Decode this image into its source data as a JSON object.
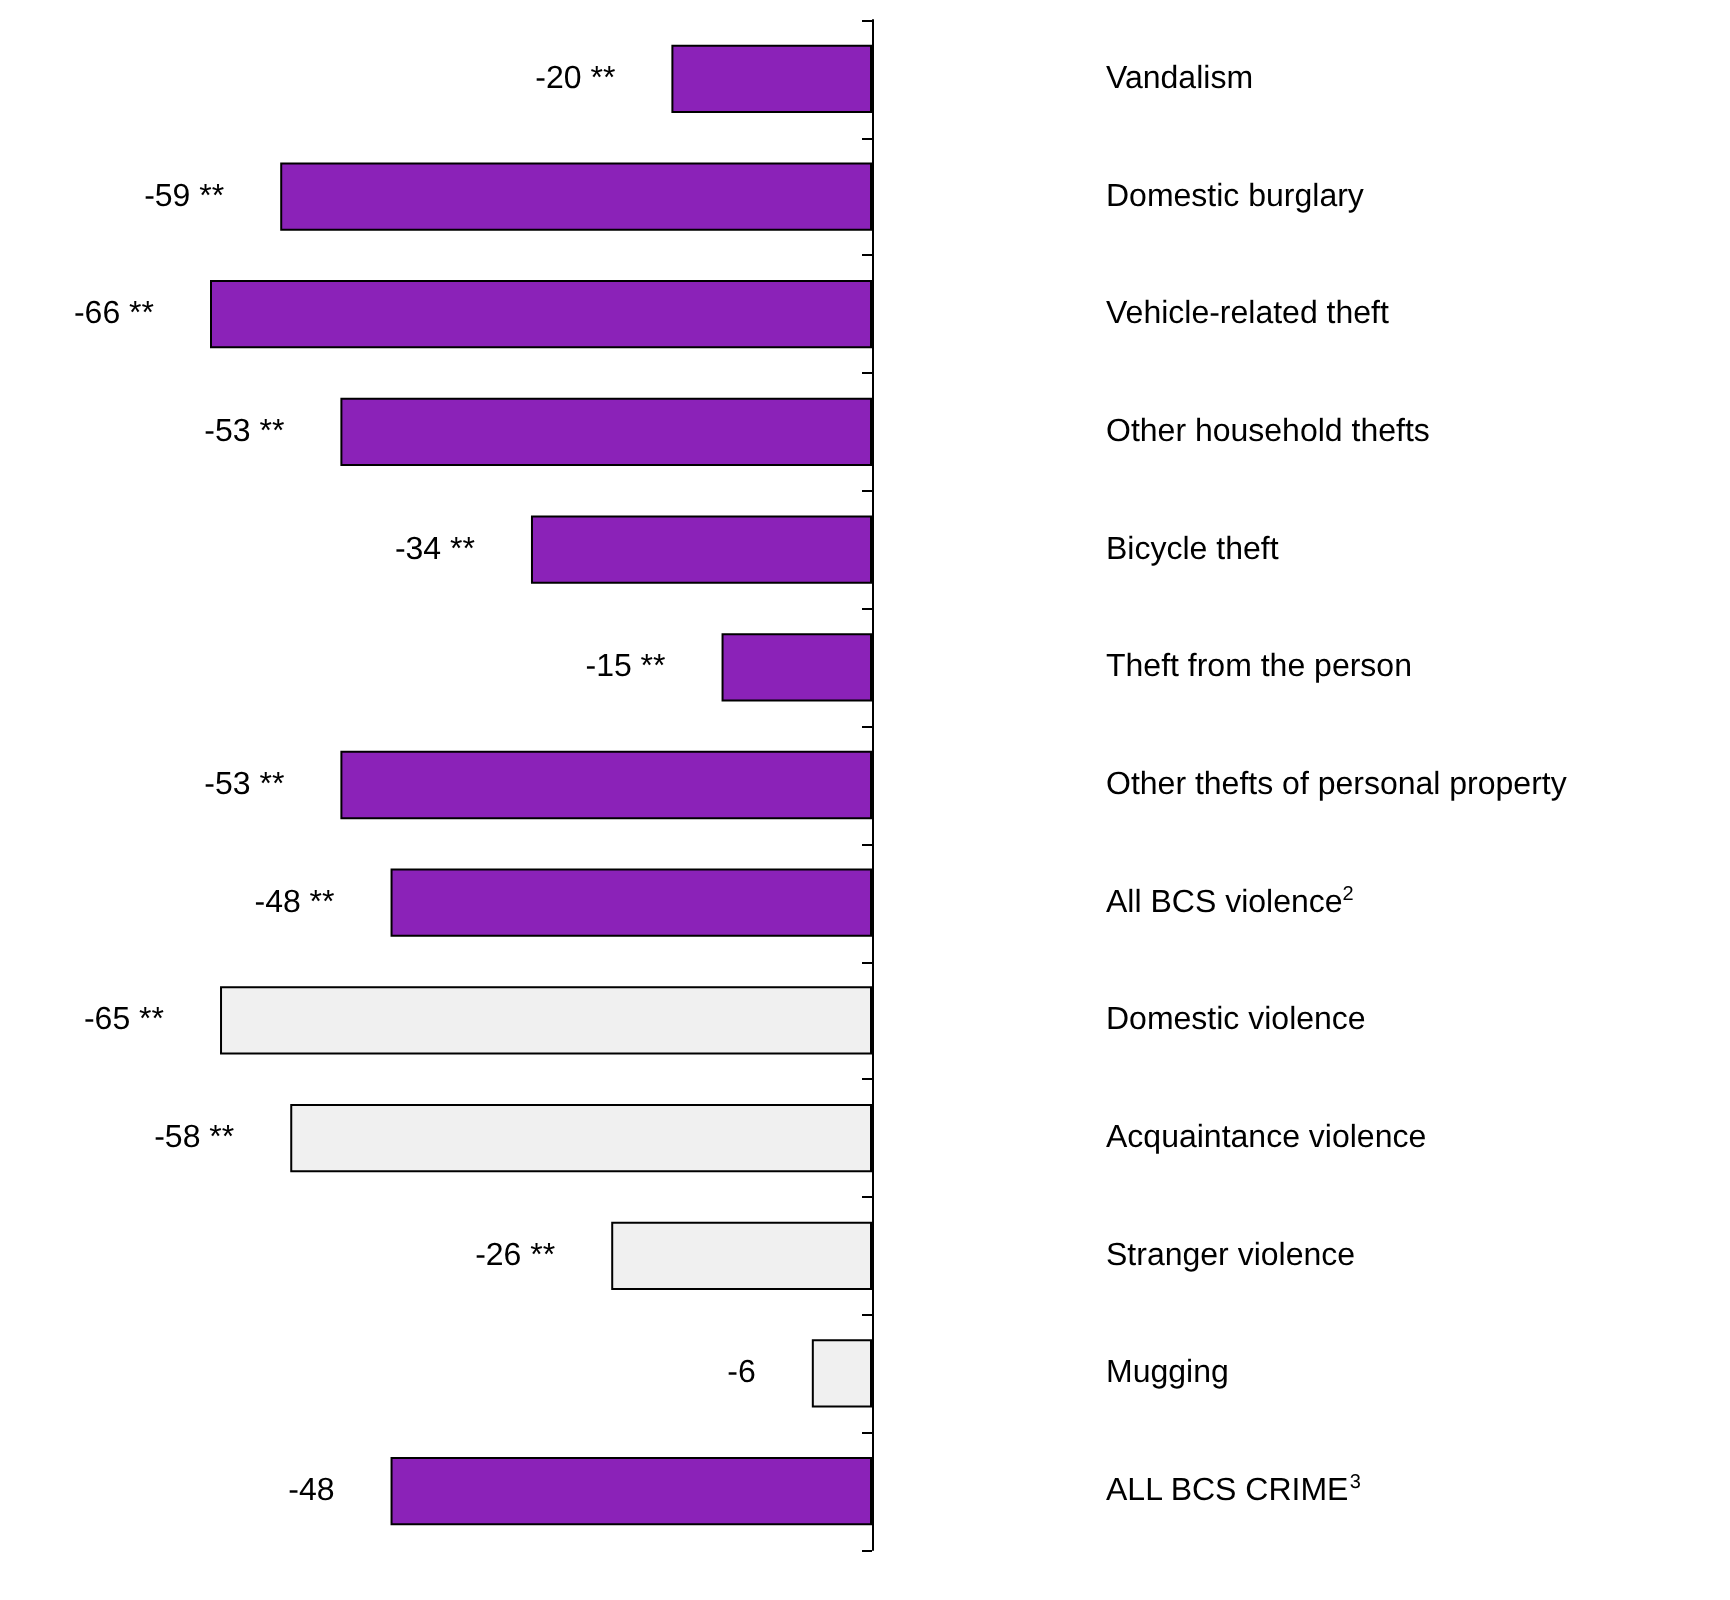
{
  "chart_data": {
    "type": "bar",
    "orientation": "horizontal",
    "categories": [
      "Vandalism",
      "Domestic burglary",
      "Vehicle-related theft",
      "Other household thefts",
      "Bicycle theft",
      "Theft from the person",
      "Other thefts of personal property",
      "All BCS violence$^{2}$",
      "Domestic violence",
      "Acquaintance violence",
      "Stranger violence",
      "Mugging",
      "ALL BCS CRIME$^{3}$"
    ],
    "values": [
      -20,
      -59,
      -66,
      -53,
      -34,
      -15,
      -53,
      -48,
      -65,
      -58,
      -26,
      -6,
      -48
    ],
    "colors": [
      "#8b22b8",
      "#8b22b8",
      "#8b22b8",
      "#8b22b8",
      "#8b22b8",
      "#8b22b8",
      "#8b22b8",
      "#8b22b8",
      "#f0f0f0",
      "#f0f0f0",
      "#f0f0f0",
      "#f0f0f0",
      "#8b22b8"
    ],
    "value_labels": [
      "-20 **",
      "-59 **",
      "-66 **",
      "-53 **",
      "-34 **",
      "-15 **",
      "-53 **",
      "-48 **",
      "-65 **",
      "-58 **",
      "-26 **",
      "-6",
      "-48"
    ]
  }
}
